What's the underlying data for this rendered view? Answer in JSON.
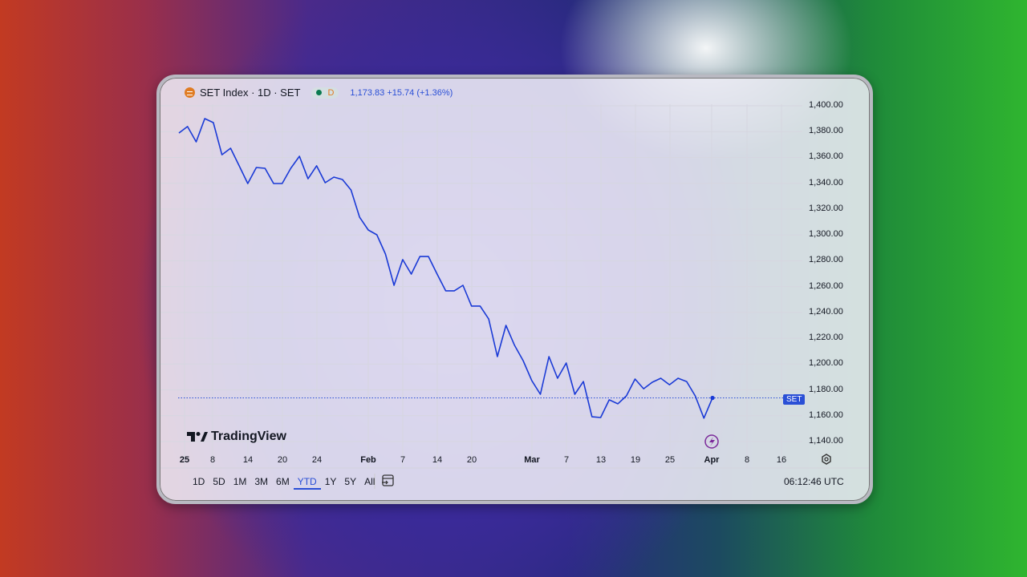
{
  "header": {
    "symbol": "SET Index · 1D · SET",
    "market_status": "D",
    "last_price": "1,173.83",
    "change": "+15.74 (+1.36%)"
  },
  "price_label": "SET",
  "logo_text": "TradingView",
  "ranges": [
    "1D",
    "5D",
    "1M",
    "3M",
    "6M",
    "YTD",
    "1Y",
    "5Y",
    "All"
  ],
  "selected_range": "YTD",
  "time": "06:12:46 UTC",
  "colors": {
    "line": "#1a3ad6",
    "accent": "#2a4fd6",
    "symbol_icon": "#e07b22",
    "alert_icon": "#7b2a9a"
  },
  "chart_data": {
    "type": "line",
    "title": "SET Index · 1D · SET",
    "xlabel": "",
    "ylabel": "",
    "ylim": [
      1140,
      1400
    ],
    "y_ticks": [
      "1,400.00",
      "1,380.00",
      "1,360.00",
      "1,340.00",
      "1,320.00",
      "1,300.00",
      "1,280.00",
      "1,260.00",
      "1,240.00",
      "1,220.00",
      "1,200.00",
      "1,180.00",
      "1,160.00",
      "1,140.00"
    ],
    "x_ticks": [
      "25",
      "8",
      "14",
      "20",
      "24",
      "Feb",
      "7",
      "14",
      "20",
      "Mar",
      "7",
      "13",
      "19",
      "25",
      "Apr",
      "8",
      "16"
    ],
    "grid": true,
    "last_value_line": 1173.83,
    "values": [
      1378.9,
      1383.9,
      1372.1,
      1390.1,
      1387.0,
      1362.1,
      1367.1,
      1353.5,
      1339.8,
      1352.2,
      1351.6,
      1339.8,
      1339.8,
      1351.6,
      1360.9,
      1343.5,
      1353.5,
      1340.4,
      1344.8,
      1342.9,
      1334.8,
      1313.7,
      1303.8,
      1300.1,
      1285.2,
      1261.0,
      1280.9,
      1269.7,
      1283.3,
      1283.3,
      1269.7,
      1256.7,
      1256.7,
      1261.0,
      1244.9,
      1244.9,
      1234.9,
      1205.8,
      1230.0,
      1214.5,
      1202.7,
      1187.2,
      1176.6,
      1205.8,
      1189.0,
      1200.8,
      1176.6,
      1186.5,
      1159.2,
      1158.6,
      1172.3,
      1169.2,
      1175.4,
      1188.4,
      1180.9,
      1185.9,
      1189.0,
      1184.0,
      1189.0,
      1186.5,
      1175.4,
      1158.09,
      1173.83
    ]
  }
}
